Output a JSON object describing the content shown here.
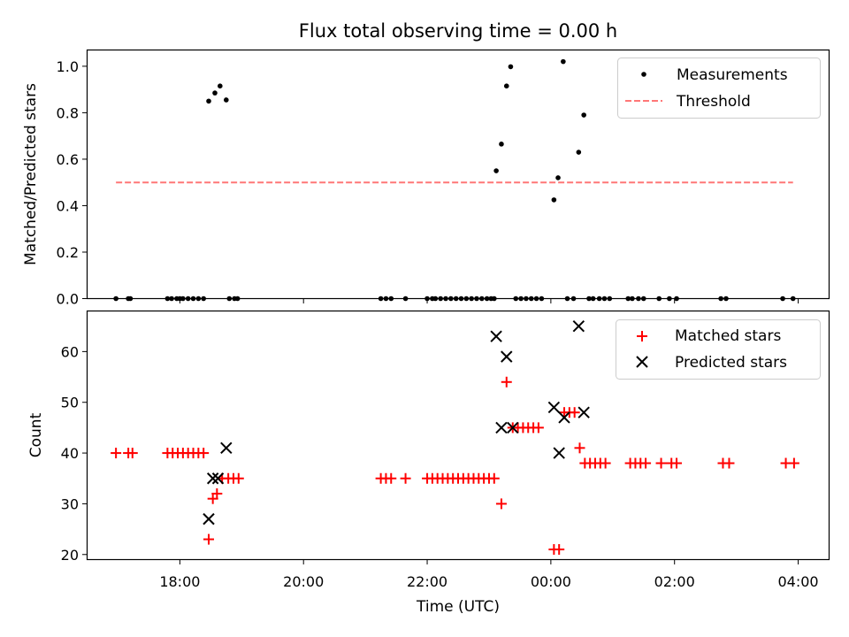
{
  "title": "Flux total observing time = 0.00 h",
  "chart_data": [
    {
      "type": "scatter",
      "ylabel": "Matched/Predicted stars",
      "xlim": [
        "16:30",
        "04:30"
      ],
      "ylim": [
        0,
        1.07
      ],
      "yticks": [
        "0.0",
        "0.2",
        "0.4",
        "0.6",
        "0.8",
        "1.0"
      ],
      "grid": false,
      "legend_position": "top-right",
      "series": [
        {
          "name": "Measurements",
          "style": "dot",
          "color": "#000000",
          "points": [
            [
              "16:58",
              0
            ],
            [
              "17:10",
              0
            ],
            [
              "17:12",
              0
            ],
            [
              "17:48",
              0
            ],
            [
              "17:52",
              0
            ],
            [
              "17:57",
              0
            ],
            [
              "18:00",
              0
            ],
            [
              "18:03",
              0
            ],
            [
              "18:08",
              0
            ],
            [
              "18:13",
              0
            ],
            [
              "18:18",
              0
            ],
            [
              "18:23",
              0
            ],
            [
              "18:28",
              0.85
            ],
            [
              "18:34",
              0.885
            ],
            [
              "18:39",
              0.915
            ],
            [
              "18:45",
              0.855
            ],
            [
              "18:48",
              0
            ],
            [
              "18:53",
              0
            ],
            [
              "18:56",
              0
            ],
            [
              "21:15",
              0
            ],
            [
              "21:20",
              0
            ],
            [
              "21:25",
              0
            ],
            [
              "21:39",
              0
            ],
            [
              "22:00",
              0
            ],
            [
              "22:05",
              0
            ],
            [
              "22:08",
              0
            ],
            [
              "22:13",
              0
            ],
            [
              "22:18",
              0
            ],
            [
              "22:23",
              0
            ],
            [
              "22:28",
              0
            ],
            [
              "22:33",
              0
            ],
            [
              "22:38",
              0
            ],
            [
              "22:43",
              0
            ],
            [
              "22:48",
              0
            ],
            [
              "22:53",
              0
            ],
            [
              "22:58",
              0
            ],
            [
              "23:02",
              0
            ],
            [
              "23:05",
              0
            ],
            [
              "23:07",
              0.55
            ],
            [
              "23:12",
              0.665
            ],
            [
              "23:17",
              0.915
            ],
            [
              "23:21",
              0.998
            ],
            [
              "23:26",
              0
            ],
            [
              "23:31",
              0
            ],
            [
              "23:36",
              0
            ],
            [
              "23:41",
              0
            ],
            [
              "23:46",
              0
            ],
            [
              "23:51",
              0
            ],
            [
              "00:03",
              0.425
            ],
            [
              "00:07",
              0.52
            ],
            [
              "00:12",
              1.02
            ],
            [
              "00:16",
              0
            ],
            [
              "00:22",
              0
            ],
            [
              "00:27",
              0.63
            ],
            [
              "00:32",
              0.79
            ],
            [
              "00:37",
              0
            ],
            [
              "00:41",
              0
            ],
            [
              "00:47",
              0
            ],
            [
              "00:52",
              0
            ],
            [
              "00:57",
              0
            ],
            [
              "01:15",
              0
            ],
            [
              "01:19",
              0
            ],
            [
              "01:25",
              0
            ],
            [
              "01:30",
              0
            ],
            [
              "01:45",
              0
            ],
            [
              "01:55",
              0
            ],
            [
              "02:02",
              0
            ],
            [
              "02:45",
              0
            ],
            [
              "02:50",
              0
            ],
            [
              "03:45",
              0
            ],
            [
              "03:55",
              0
            ]
          ]
        },
        {
          "name": "Threshold",
          "style": "dashed-line",
          "color": "#ff7777",
          "points": [
            [
              "16:58",
              0.5
            ],
            [
              "03:55",
              0.5
            ]
          ]
        }
      ]
    },
    {
      "type": "scatter",
      "xlabel": "Time (UTC)",
      "ylabel": "Count",
      "xlim": [
        "16:30",
        "04:30"
      ],
      "ylim": [
        19,
        68
      ],
      "xticks": [
        "18:00",
        "20:00",
        "22:00",
        "00:00",
        "02:00",
        "04:00"
      ],
      "yticks": [
        "20",
        "30",
        "40",
        "50",
        "60"
      ],
      "grid": false,
      "legend_position": "top-right",
      "series": [
        {
          "name": "Matched stars",
          "style": "plus",
          "color": "#ff0000",
          "points": [
            [
              "16:58",
              40
            ],
            [
              "17:10",
              40
            ],
            [
              "17:14",
              40
            ],
            [
              "17:48",
              40
            ],
            [
              "17:53",
              40
            ],
            [
              "17:58",
              40
            ],
            [
              "18:03",
              40
            ],
            [
              "18:08",
              40
            ],
            [
              "18:13",
              40
            ],
            [
              "18:18",
              40
            ],
            [
              "18:23",
              40
            ],
            [
              "18:28",
              23
            ],
            [
              "18:32",
              31
            ],
            [
              "18:36",
              32
            ],
            [
              "18:41",
              35
            ],
            [
              "18:47",
              35
            ],
            [
              "18:52",
              35
            ],
            [
              "18:57",
              35
            ],
            [
              "21:15",
              35
            ],
            [
              "21:20",
              35
            ],
            [
              "21:25",
              35
            ],
            [
              "21:39",
              35
            ],
            [
              "22:00",
              35
            ],
            [
              "22:05",
              35
            ],
            [
              "22:10",
              35
            ],
            [
              "22:15",
              35
            ],
            [
              "22:20",
              35
            ],
            [
              "22:25",
              35
            ],
            [
              "22:30",
              35
            ],
            [
              "22:35",
              35
            ],
            [
              "22:40",
              35
            ],
            [
              "22:45",
              35
            ],
            [
              "22:50",
              35
            ],
            [
              "22:55",
              35
            ],
            [
              "23:00",
              35
            ],
            [
              "23:05",
              35
            ],
            [
              "23:12",
              30
            ],
            [
              "23:17",
              54
            ],
            [
              "23:23",
              45
            ],
            [
              "23:28",
              45
            ],
            [
              "23:33",
              45
            ],
            [
              "23:38",
              45
            ],
            [
              "23:43",
              45
            ],
            [
              "23:48",
              45
            ],
            [
              "00:03",
              21
            ],
            [
              "00:08",
              21
            ],
            [
              "00:13",
              48
            ],
            [
              "00:18",
              48
            ],
            [
              "00:23",
              48
            ],
            [
              "00:28",
              41
            ],
            [
              "00:33",
              38
            ],
            [
              "00:38",
              38
            ],
            [
              "00:43",
              38
            ],
            [
              "00:48",
              38
            ],
            [
              "00:53",
              38
            ],
            [
              "01:17",
              38
            ],
            [
              "01:22",
              38
            ],
            [
              "01:27",
              38
            ],
            [
              "01:32",
              38
            ],
            [
              "01:47",
              38
            ],
            [
              "01:57",
              38
            ],
            [
              "02:02",
              38
            ],
            [
              "02:47",
              38
            ],
            [
              "02:53",
              38
            ],
            [
              "03:48",
              38
            ],
            [
              "03:56",
              38
            ]
          ]
        },
        {
          "name": "Predicted stars",
          "style": "x",
          "color": "#000000",
          "points": [
            [
              "18:28",
              27
            ],
            [
              "18:32",
              35
            ],
            [
              "18:37",
              35
            ],
            [
              "18:45",
              41
            ],
            [
              "23:07",
              63
            ],
            [
              "23:12",
              45
            ],
            [
              "23:17",
              59
            ],
            [
              "23:23",
              45
            ],
            [
              "00:03",
              49
            ],
            [
              "00:08",
              40
            ],
            [
              "00:13",
              47
            ],
            [
              "00:27",
              65
            ],
            [
              "00:32",
              48
            ]
          ]
        }
      ]
    }
  ]
}
